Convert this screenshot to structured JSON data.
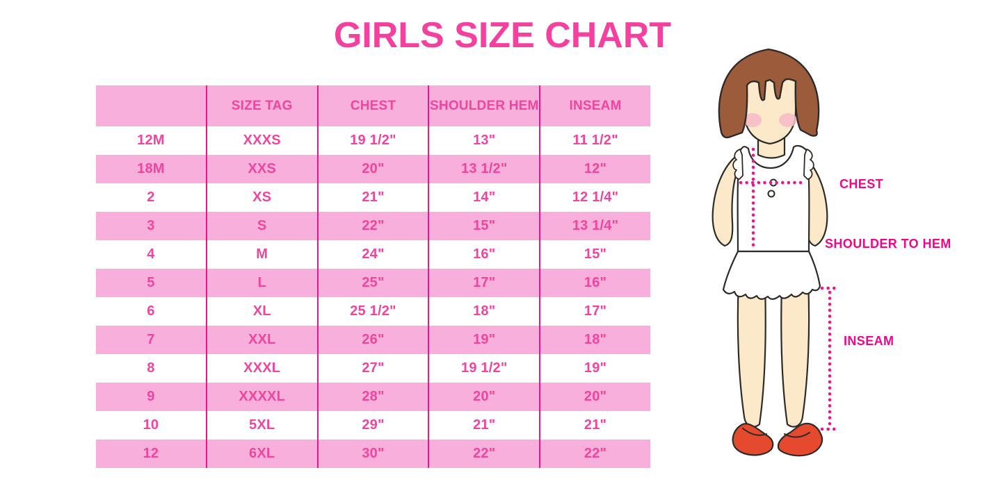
{
  "title": "GIRLS SIZE CHART",
  "table": {
    "columns": [
      "",
      "SIZE TAG",
      "CHEST",
      "SHOULDER HEM",
      "INSEAM"
    ],
    "rows": [
      [
        "12M",
        "XXXS",
        "19 1/2\"",
        "13\"",
        "11 1/2\""
      ],
      [
        "18M",
        "XXS",
        "20\"",
        "13 1/2\"",
        "12\""
      ],
      [
        "2",
        "XS",
        "21\"",
        "14\"",
        "12 1/4\""
      ],
      [
        "3",
        "S",
        "22\"",
        "15\"",
        "13 1/4\""
      ],
      [
        "4",
        "M",
        "24\"",
        "16\"",
        "15\""
      ],
      [
        "5",
        "L",
        "25\"",
        "17\"",
        "16\""
      ],
      [
        "6",
        "XL",
        "25 1/2\"",
        "18\"",
        "17\""
      ],
      [
        "7",
        "XXL",
        "26\"",
        "19\"",
        "18\""
      ],
      [
        "8",
        "XXXL",
        "27\"",
        "19 1/2\"",
        "19\""
      ],
      [
        "9",
        "XXXXL",
        "28\"",
        "20\"",
        "20\""
      ],
      [
        "10",
        "5XL",
        "29\"",
        "21\"",
        "21\""
      ],
      [
        "12",
        "6XL",
        "30\"",
        "22\"",
        "22\""
      ]
    ]
  },
  "figure": {
    "labels": {
      "chest": "CHEST",
      "shoulder_to_hem": "SHOULDER TO HEM",
      "inseam": "INSEAM"
    }
  },
  "colors": {
    "title_pink": "#F4419F",
    "table_text_pink": "#F0459F",
    "row_background_pink": "#F9AFDB",
    "column_line_magenta": "#E6188E",
    "measurement_pink": "#F0148C",
    "label_pink": "#F0068C",
    "hair_brown": "#9C5B3B",
    "skin": "#FBE9CA",
    "blush": "#F5BBC7",
    "shoe_red": "#E64A2E",
    "outline": "#2E2A27"
  }
}
